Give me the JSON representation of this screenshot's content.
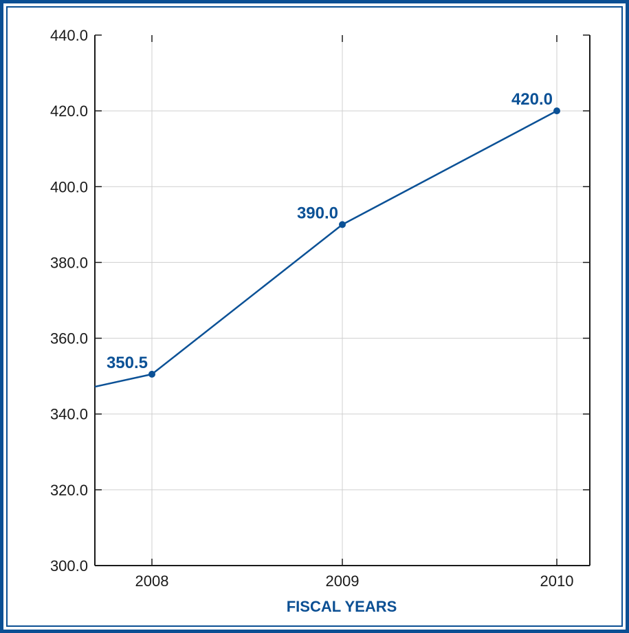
{
  "colors": {
    "frame": "#0b4f93",
    "series": "#0b5196",
    "grid": "#cfcfcf",
    "axis": "#1a1a1a"
  },
  "chart_data": {
    "type": "line",
    "categories": [
      "2008",
      "2009",
      "2010"
    ],
    "series": [
      {
        "values": [
          350.5,
          390.0,
          420.0
        ],
        "labels": [
          "350.5",
          "390.0",
          "420.0"
        ]
      }
    ],
    "lead_in_value": 347.2,
    "xlabel": "FISCAL YEARS",
    "ylabel": "",
    "ylim": [
      300,
      440
    ],
    "yticks": [
      "300.0",
      "320.0",
      "340.0",
      "360.0",
      "380.0",
      "400.0",
      "420.0",
      "440.0"
    ],
    "grid": true
  }
}
